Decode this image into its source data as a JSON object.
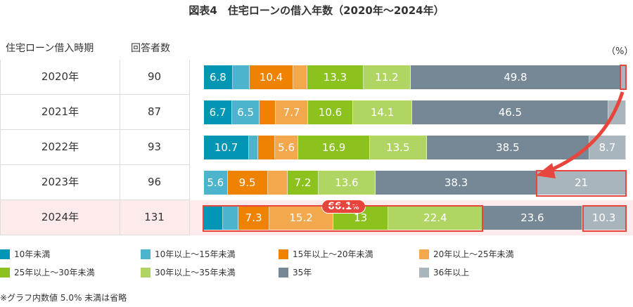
{
  "title": "図表4　住宅ローンの借入年数（2020年～2024年）",
  "table": {
    "col1": "住宅ローン借入時期",
    "col2": "回答者数"
  },
  "unit": "（%）",
  "badge": {
    "value": "66.1",
    "unit": "%"
  },
  "note": "※グラフ内数値 5.0% 未満は省略",
  "chart_data": {
    "type": "bar",
    "orientation": "horizontal",
    "stacked": true,
    "title": "図表4　住宅ローンの借入年数（2020年～2024年）",
    "categories": [
      "2020年",
      "2021年",
      "2022年",
      "2023年",
      "2024年"
    ],
    "respondents": [
      "90",
      "87",
      "93",
      "96",
      "131"
    ],
    "label_threshold": 5.0,
    "series": [
      {
        "name": "10年未満",
        "color": "#0096b4",
        "values": [
          6.8,
          6.7,
          10.7,
          0,
          4.5
        ]
      },
      {
        "name": "10年以上～15年未満",
        "color": "#4cb4cc",
        "values": [
          4.0,
          6.5,
          2.2,
          5.6,
          3.7
        ]
      },
      {
        "name": "15年以上～20年未満",
        "color": "#ef8200",
        "values": [
          10.4,
          3.8,
          3.9,
          9.5,
          7.3
        ]
      },
      {
        "name": "20年以上～25年未満",
        "color": "#f3a84d",
        "values": [
          3.3,
          7.7,
          5.6,
          4.8,
          15.2
        ]
      },
      {
        "name": "25年以上～30年未満",
        "color": "#8cc21e",
        "values": [
          13.3,
          10.6,
          16.9,
          7.2,
          13.0
        ]
      },
      {
        "name": "30年以上～35年未満",
        "color": "#b1d563",
        "values": [
          11.2,
          14.1,
          13.5,
          13.6,
          22.4
        ]
      },
      {
        "name": "35年",
        "color": "#768795",
        "values": [
          49.8,
          46.5,
          38.5,
          38.3,
          23.6
        ]
      },
      {
        "name": "36年以上",
        "color": "#a9b5bc",
        "values": [
          1.2,
          4.1,
          8.7,
          21.0,
          10.3
        ]
      }
    ],
    "xlim": [
      0,
      100
    ],
    "highlight_row": "2024年",
    "highlight_color": "#e8453c"
  }
}
